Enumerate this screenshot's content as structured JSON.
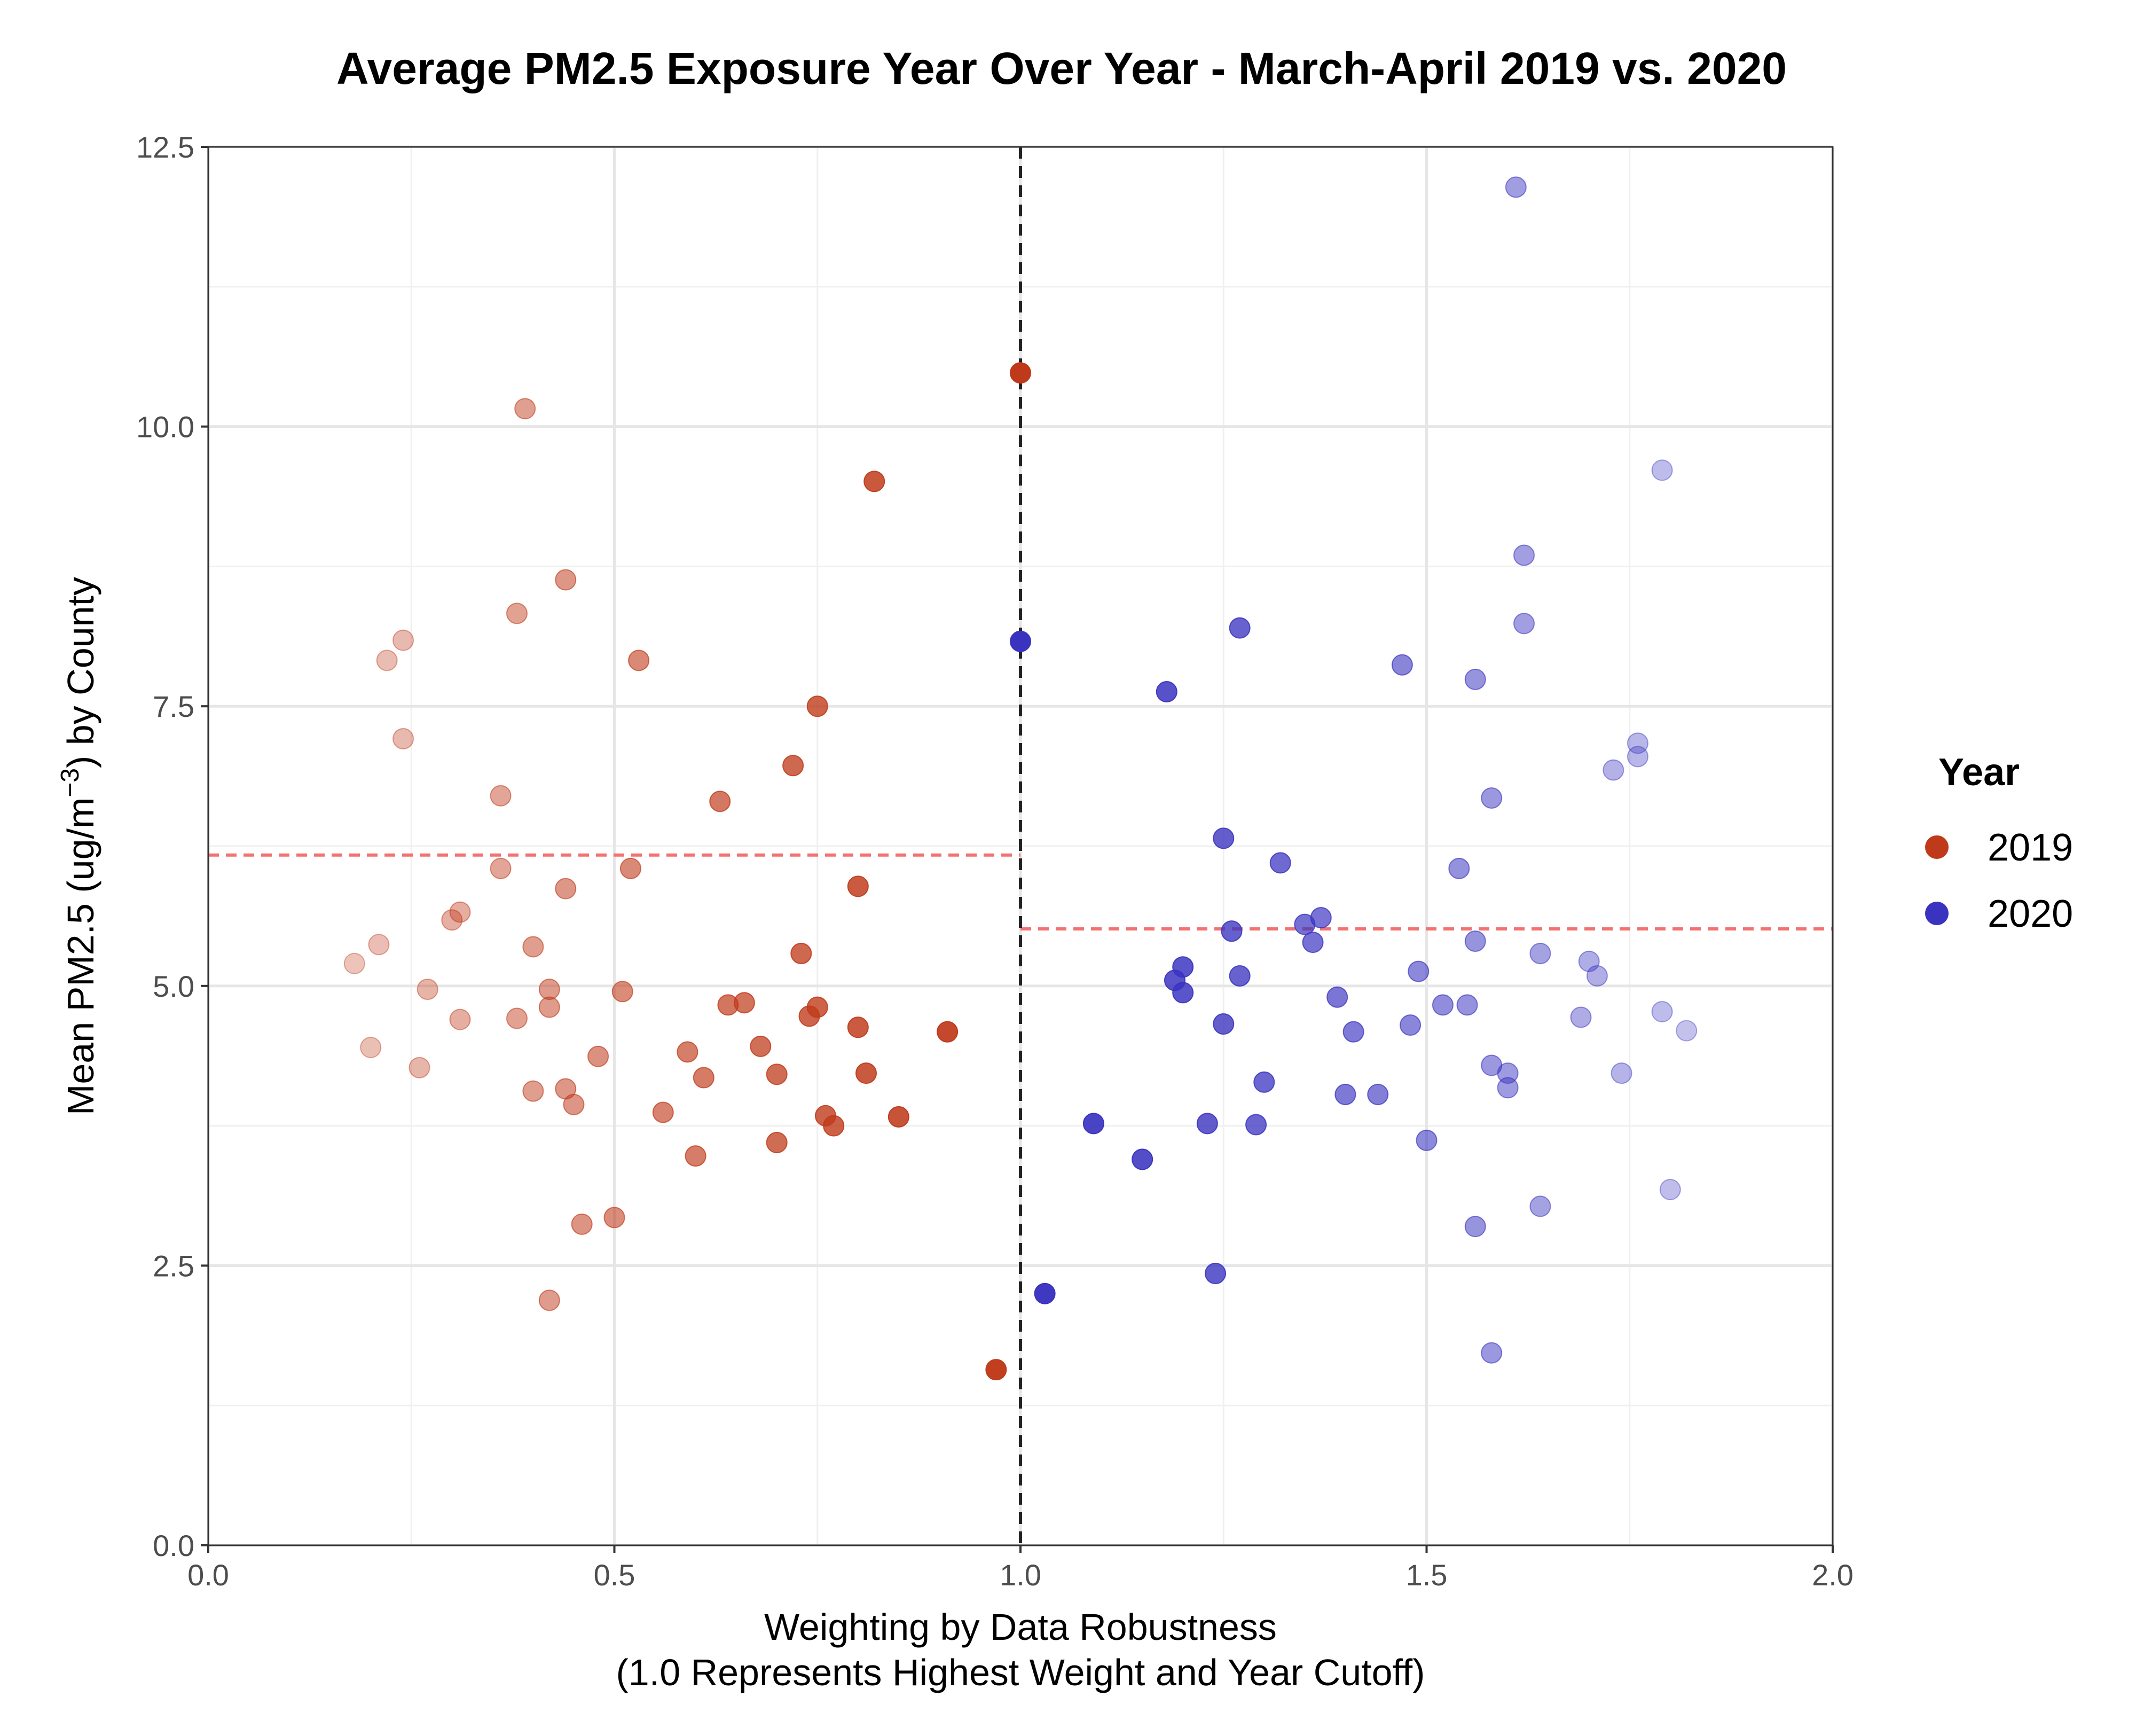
{
  "chart_data": {
    "type": "scatter",
    "title": "Average PM2.5 Exposure Year Over Year - March-April 2019 vs. 2020",
    "xlabel_line1": "Weighting by Data Robustness",
    "xlabel_line2": "(1.0 Represents Highest Weight and Year Cutoff)",
    "ylabel": {
      "prefix": "Mean PM2.5 (ug/m",
      "superscript": "−3",
      "suffix": ") by County"
    },
    "xlim": [
      0,
      2
    ],
    "ylim": [
      0,
      12.5
    ],
    "x_ticks": [
      0,
      0.5,
      1,
      1.5,
      2
    ],
    "x_tick_labels": [
      "0.0",
      "0.5",
      "1.0",
      "1.5",
      "2.0"
    ],
    "y_ticks": [
      0,
      2.5,
      5,
      7.5,
      10,
      12.5
    ],
    "y_tick_labels": [
      "0.0",
      "2.5",
      "5.0",
      "7.5",
      "10.0",
      "12.5"
    ],
    "grid": true,
    "legend": {
      "title": "Year",
      "position": "right",
      "entries": [
        {
          "label": "2019",
          "color": "#BF3A1A"
        },
        {
          "label": "2020",
          "color": "#3A33C0"
        }
      ]
    },
    "reference_lines": {
      "vertical_cutoff_x": 1.0,
      "vertical_color": "#222222",
      "mean_color": "#F27272",
      "mean_2019": 6.17,
      "mean_2020": 5.51
    },
    "series": [
      {
        "name": "2019",
        "color": "#BF3A1A",
        "points": [
          [
            1.0,
            10.48
          ],
          [
            0.82,
            9.51
          ],
          [
            0.97,
            1.57
          ],
          [
            0.91,
            4.59
          ],
          [
            0.85,
            3.83
          ],
          [
            0.81,
            4.22
          ],
          [
            0.8,
            5.89
          ],
          [
            0.8,
            4.63
          ],
          [
            0.77,
            3.75
          ],
          [
            0.76,
            3.84
          ],
          [
            0.75,
            7.5
          ],
          [
            0.75,
            4.81
          ],
          [
            0.74,
            4.73
          ],
          [
            0.73,
            5.29
          ],
          [
            0.72,
            6.97
          ],
          [
            0.7,
            4.21
          ],
          [
            0.7,
            3.6
          ],
          [
            0.68,
            4.46
          ],
          [
            0.66,
            4.85
          ],
          [
            0.64,
            4.83
          ],
          [
            0.63,
            6.65
          ],
          [
            0.61,
            4.18
          ],
          [
            0.6,
            3.48
          ],
          [
            0.59,
            4.41
          ],
          [
            0.56,
            3.87
          ],
          [
            0.53,
            7.91
          ],
          [
            0.52,
            6.05
          ],
          [
            0.51,
            4.95
          ],
          [
            0.5,
            2.93
          ],
          [
            0.48,
            4.37
          ],
          [
            0.46,
            2.87
          ],
          [
            0.45,
            3.94
          ],
          [
            0.44,
            4.08
          ],
          [
            0.44,
            5.87
          ],
          [
            0.44,
            8.63
          ],
          [
            0.42,
            4.97
          ],
          [
            0.42,
            4.81
          ],
          [
            0.42,
            2.19
          ],
          [
            0.4,
            5.35
          ],
          [
            0.4,
            4.06
          ],
          [
            0.39,
            10.16
          ],
          [
            0.38,
            4.71
          ],
          [
            0.38,
            8.33
          ],
          [
            0.36,
            6.05
          ],
          [
            0.36,
            6.7
          ],
          [
            0.31,
            4.7
          ],
          [
            0.31,
            5.66
          ],
          [
            0.3,
            5.59
          ],
          [
            0.27,
            4.97
          ],
          [
            0.26,
            4.27
          ],
          [
            0.24,
            8.09
          ],
          [
            0.24,
            7.21
          ],
          [
            0.22,
            7.91
          ],
          [
            0.21,
            5.37
          ],
          [
            0.2,
            4.45
          ],
          [
            0.18,
            5.2
          ]
        ]
      },
      {
        "name": "2020",
        "color": "#3A33C0",
        "points": [
          [
            1.0,
            8.08
          ],
          [
            1.03,
            2.25
          ],
          [
            1.09,
            3.77
          ],
          [
            1.15,
            3.45
          ],
          [
            1.18,
            7.63
          ],
          [
            1.19,
            5.05
          ],
          [
            1.2,
            4.94
          ],
          [
            1.2,
            5.17
          ],
          [
            1.23,
            3.77
          ],
          [
            1.24,
            2.43
          ],
          [
            1.25,
            6.32
          ],
          [
            1.25,
            4.66
          ],
          [
            1.26,
            5.49
          ],
          [
            1.27,
            5.09
          ],
          [
            1.27,
            8.2
          ],
          [
            1.29,
            3.76
          ],
          [
            1.3,
            4.14
          ],
          [
            1.32,
            6.1
          ],
          [
            1.35,
            5.55
          ],
          [
            1.36,
            5.39
          ],
          [
            1.37,
            5.61
          ],
          [
            1.39,
            4.9
          ],
          [
            1.4,
            4.03
          ],
          [
            1.41,
            4.59
          ],
          [
            1.44,
            4.03
          ],
          [
            1.47,
            7.87
          ],
          [
            1.48,
            4.65
          ],
          [
            1.49,
            5.13
          ],
          [
            1.5,
            3.62
          ],
          [
            1.52,
            4.83
          ],
          [
            1.54,
            6.05
          ],
          [
            1.55,
            4.83
          ],
          [
            1.56,
            7.74
          ],
          [
            1.56,
            5.4
          ],
          [
            1.56,
            2.85
          ],
          [
            1.58,
            6.68
          ],
          [
            1.58,
            4.29
          ],
          [
            1.58,
            1.72
          ],
          [
            1.6,
            4.22
          ],
          [
            1.6,
            4.09
          ],
          [
            1.61,
            12.14
          ],
          [
            1.62,
            8.85
          ],
          [
            1.62,
            8.24
          ],
          [
            1.64,
            5.29
          ],
          [
            1.64,
            3.03
          ],
          [
            1.69,
            4.72
          ],
          [
            1.7,
            5.22
          ],
          [
            1.71,
            5.09
          ],
          [
            1.73,
            6.93
          ],
          [
            1.74,
            4.22
          ],
          [
            1.76,
            7.17
          ],
          [
            1.76,
            7.05
          ],
          [
            1.79,
            9.61
          ],
          [
            1.79,
            4.77
          ],
          [
            1.8,
            3.18
          ],
          [
            1.82,
            4.6
          ]
        ]
      }
    ]
  }
}
